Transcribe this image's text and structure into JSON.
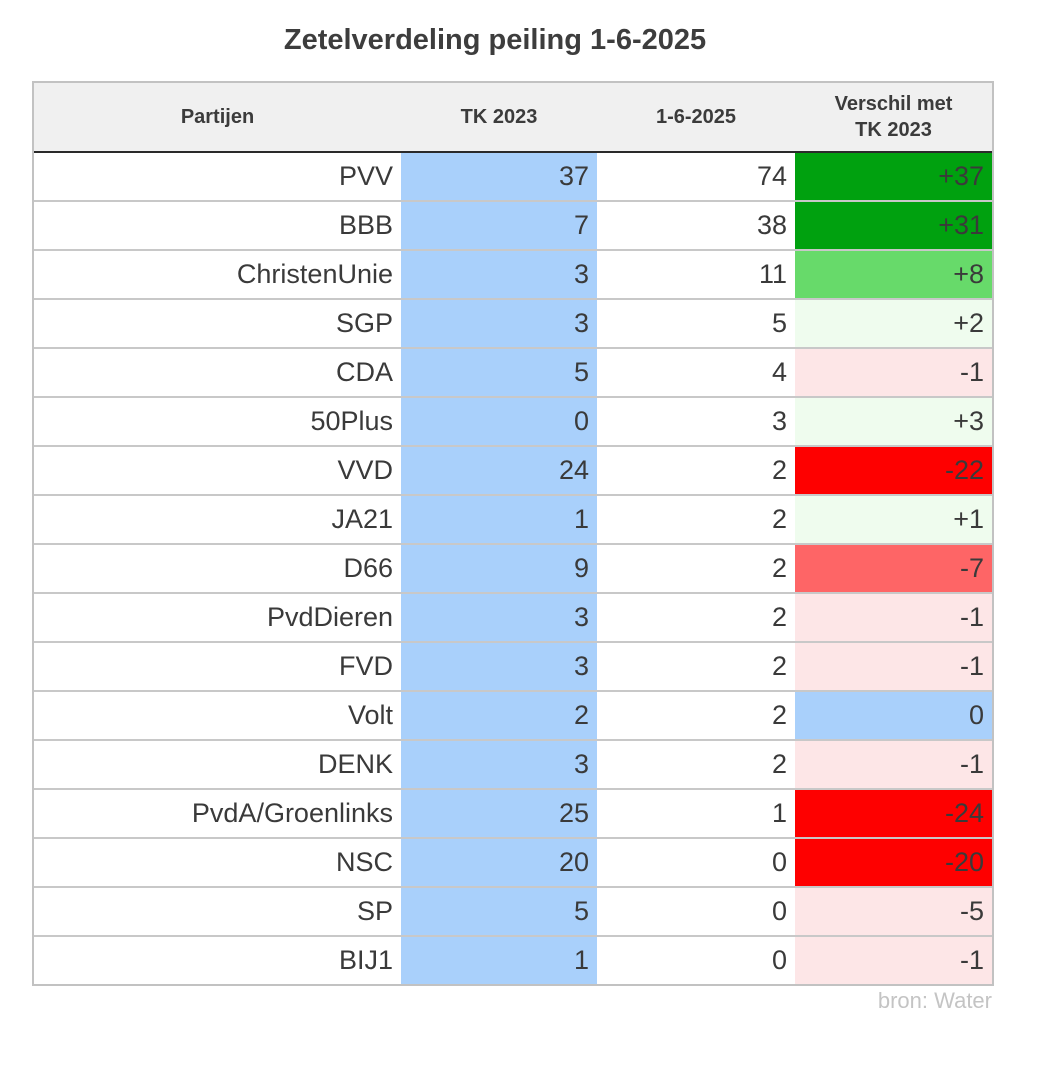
{
  "chart_data": {
    "type": "table",
    "title": "Zetelverdeling peiling 1-6-2025",
    "columns": [
      "Partijen",
      "TK 2023",
      "1-6-2025",
      "Verschil met TK 2023"
    ],
    "rows": [
      {
        "party": "PVV",
        "tk2023": "37",
        "poll": "74",
        "diff": "+37",
        "diff_color": "#00a10f"
      },
      {
        "party": "BBB",
        "tk2023": "7",
        "poll": "38",
        "diff": "+31",
        "diff_color": "#00a10f"
      },
      {
        "party": "ChristenUnie",
        "tk2023": "3",
        "poll": "11",
        "diff": "+8",
        "diff_color": "#67da6a"
      },
      {
        "party": "SGP",
        "tk2023": "3",
        "poll": "5",
        "diff": "+2",
        "diff_color": "#effcee"
      },
      {
        "party": "CDA",
        "tk2023": "5",
        "poll": "4",
        "diff": "-1",
        "diff_color": "#fde6e7"
      },
      {
        "party": "50Plus",
        "tk2023": "0",
        "poll": "3",
        "diff": "+3",
        "diff_color": "#effcee"
      },
      {
        "party": "VVD",
        "tk2023": "24",
        "poll": "2",
        "diff": "-22",
        "diff_color": "#fe0000"
      },
      {
        "party": "JA21",
        "tk2023": "1",
        "poll": "2",
        "diff": "+1",
        "diff_color": "#effcee"
      },
      {
        "party": "D66",
        "tk2023": "9",
        "poll": "2",
        "diff": "-7",
        "diff_color": "#fe6566"
      },
      {
        "party": "PvdDieren",
        "tk2023": "3",
        "poll": "2",
        "diff": "-1",
        "diff_color": "#fde6e7"
      },
      {
        "party": "FVD",
        "tk2023": "3",
        "poll": "2",
        "diff": "-1",
        "diff_color": "#fde6e7"
      },
      {
        "party": "Volt",
        "tk2023": "2",
        "poll": "2",
        "diff": "0",
        "diff_color": "#a9d0fb"
      },
      {
        "party": "DENK",
        "tk2023": "3",
        "poll": "2",
        "diff": "-1",
        "diff_color": "#fde6e7"
      },
      {
        "party": "PvdA/Groenlinks",
        "tk2023": "25",
        "poll": "1",
        "diff": "-24",
        "diff_color": "#fe0000"
      },
      {
        "party": "NSC",
        "tk2023": "20",
        "poll": "0",
        "diff": "-20",
        "diff_color": "#fe0000"
      },
      {
        "party": "SP",
        "tk2023": "5",
        "poll": "0",
        "diff": "-5",
        "diff_color": "#fde6e7"
      },
      {
        "party": "BIJ1",
        "tk2023": "1",
        "poll": "0",
        "diff": "-1",
        "diff_color": "#fde6e7"
      }
    ],
    "source": "bron: Water",
    "tk2023_column_color": "#a9d0fb"
  }
}
